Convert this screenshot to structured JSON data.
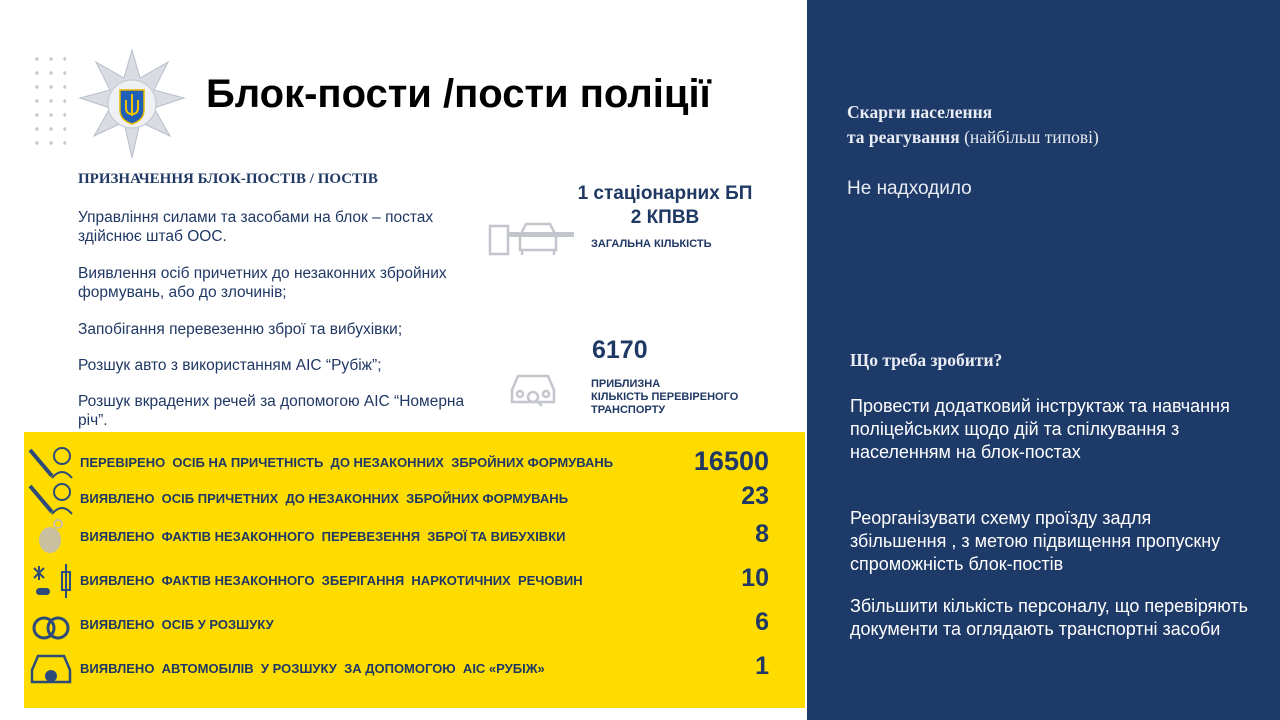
{
  "title": "Блок-пости /пости  поліції",
  "purpose": {
    "heading": "ПРИЗНАЧЕННЯ БЛОК-ПОСТІВ / ПОСТІВ",
    "items": [
      "Управління силами та засобами на блок – постах здійснює штаб ООС.",
      "Виявлення осіб причетних до незаконних збройних формувань, або до злочинів;",
      "Запобігання перевезенню зброї та вибухівки;",
      "Розшук авто з використанням АІС “Рубіж”;",
      "Розшук вкрадених речей за допомогою АІС “Номерна річ”."
    ]
  },
  "total": {
    "line1": "1 стаціонарних БП",
    "line2": "2 КПВВ",
    "caption": "ЗАГАЛЬНА  КІЛЬКІСТЬ",
    "icon": "barrier-car-icon"
  },
  "vehicles": {
    "value": "6170",
    "caption_1": "ПРИБЛИЗНА",
    "caption_2": "КІЛЬКІСТЬ  ПЕРЕВІРЕНОГО",
    "caption_3": "ТРАНСПОРТУ",
    "icon": "car-search-icon"
  },
  "stats": [
    {
      "label": "ПЕРЕВІРЕНО  ОСІБ НА ПРИЧЕТНІСТЬ  ДО НЕЗАКОННИХ  ЗБРОЙНИХ ФОРМУВАНЬ",
      "value": "16500",
      "icon": "soldier-rifle-icon"
    },
    {
      "label": "ВИЯВЛЕНО  ОСІБ ПРИЧЕТНИХ  ДО НЕЗАКОННИХ  ЗБРОЙНИХ ФОРМУВАНЬ",
      "value": "23",
      "icon": "soldier-rifle-icon"
    },
    {
      "label": "ВИЯВЛЕНО  ФАКТІВ НЕЗАКОННОГО  ПЕРЕВЕЗЕННЯ  ЗБРОЇ ТА ВИБУХІВКИ",
      "value": "8",
      "icon": "grenade-icon"
    },
    {
      "label": "ВИЯВЛЕНО  ФАКТІВ НЕЗАКОННОГО  ЗБЕРІГАННЯ  НАРКОТИЧНИХ  РЕЧОВИН",
      "value": "10",
      "icon": "drugs-syringe-icon"
    },
    {
      "label": "ВИЯВЛЕНО  ОСІБ У РОЗШУКУ",
      "value": "6",
      "icon": "handcuffs-icon"
    },
    {
      "label": "ВИЯВЛЕНО  АВТОМОБІЛІВ  У РОЗШУКУ  ЗА ДОПОМОГОЮ  АІС «РУБІЖ»",
      "value": "1",
      "icon": "car-search-icon"
    }
  ],
  "panel": {
    "complaints_heading_1": "Скарги населення",
    "complaints_heading_2": "та реагування",
    "complaints_heading_note": " (найбільш типові)",
    "complaints_text": "Не надходило",
    "todo_heading": "Що треба зробити?",
    "todo": [
      "Провести додатковий інструктаж та навчання поліцейських щодо дій та спілкування з населенням на блок-постах",
      "Реорганізувати схему проїзду задля збільшення , з метою підвищення пропускну спроможність блок-постів",
      "Збільшити кількість персоналу, що перевіряють документи та оглядають транспортні засоби"
    ]
  },
  "colors": {
    "panel": "#1e3a68",
    "highlight": "#ffdc00",
    "text": "#1f3864"
  }
}
